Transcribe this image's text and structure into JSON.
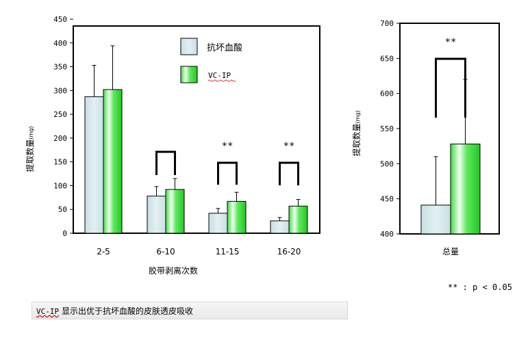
{
  "chart_data": [
    {
      "type": "bar",
      "ylabel": "提取数量",
      "ylabel_unit": "(mg)",
      "xlabel": "胶带剥离次数",
      "categories": [
        "2-5",
        "6-10",
        "11-15",
        "16-20"
      ],
      "ylim": [
        0,
        450
      ],
      "yticks": [
        "0",
        "50",
        "100",
        "150",
        "200",
        "250",
        "300",
        "350",
        "400",
        "450"
      ],
      "series": [
        {
          "name": "抗坏血酸",
          "values": [
            287,
            78,
            42,
            26
          ],
          "errors": [
            66,
            20,
            10,
            7
          ]
        },
        {
          "name": "VC-IP",
          "values": [
            302,
            92,
            67,
            57
          ],
          "errors": [
            92,
            23,
            19,
            14
          ]
        }
      ],
      "significance": [
        {
          "category": "6-10",
          "mark": ""
        },
        {
          "category": "11-15",
          "mark": "**"
        },
        {
          "category": "16-20",
          "mark": "**"
        }
      ],
      "legend_position": "top-right",
      "colors": {
        "抗坏血酸": "#d3e6ea",
        "VC-IP": "#3ddb3d"
      },
      "grid": false
    },
    {
      "type": "bar",
      "ylabel": "提取数量",
      "ylabel_unit": "(mg)",
      "categories": [
        "总量"
      ],
      "ylim": [
        400,
        700
      ],
      "yticks": [
        "400",
        "450",
        "500",
        "550",
        "600",
        "650",
        "700"
      ],
      "series": [
        {
          "name": "抗坏血酸",
          "values": [
            441
          ],
          "errors": [
            69
          ]
        },
        {
          "name": "VC-IP",
          "values": [
            528
          ],
          "errors": [
            92
          ]
        }
      ],
      "significance": [
        {
          "category": "总量",
          "mark": "**"
        }
      ],
      "grid": false
    }
  ],
  "footnote": "** : p < 0.05",
  "caption": {
    "lead": "VC-IP",
    "text": " 显示出优于抗坏血酸的皮肤透皮吸收"
  }
}
